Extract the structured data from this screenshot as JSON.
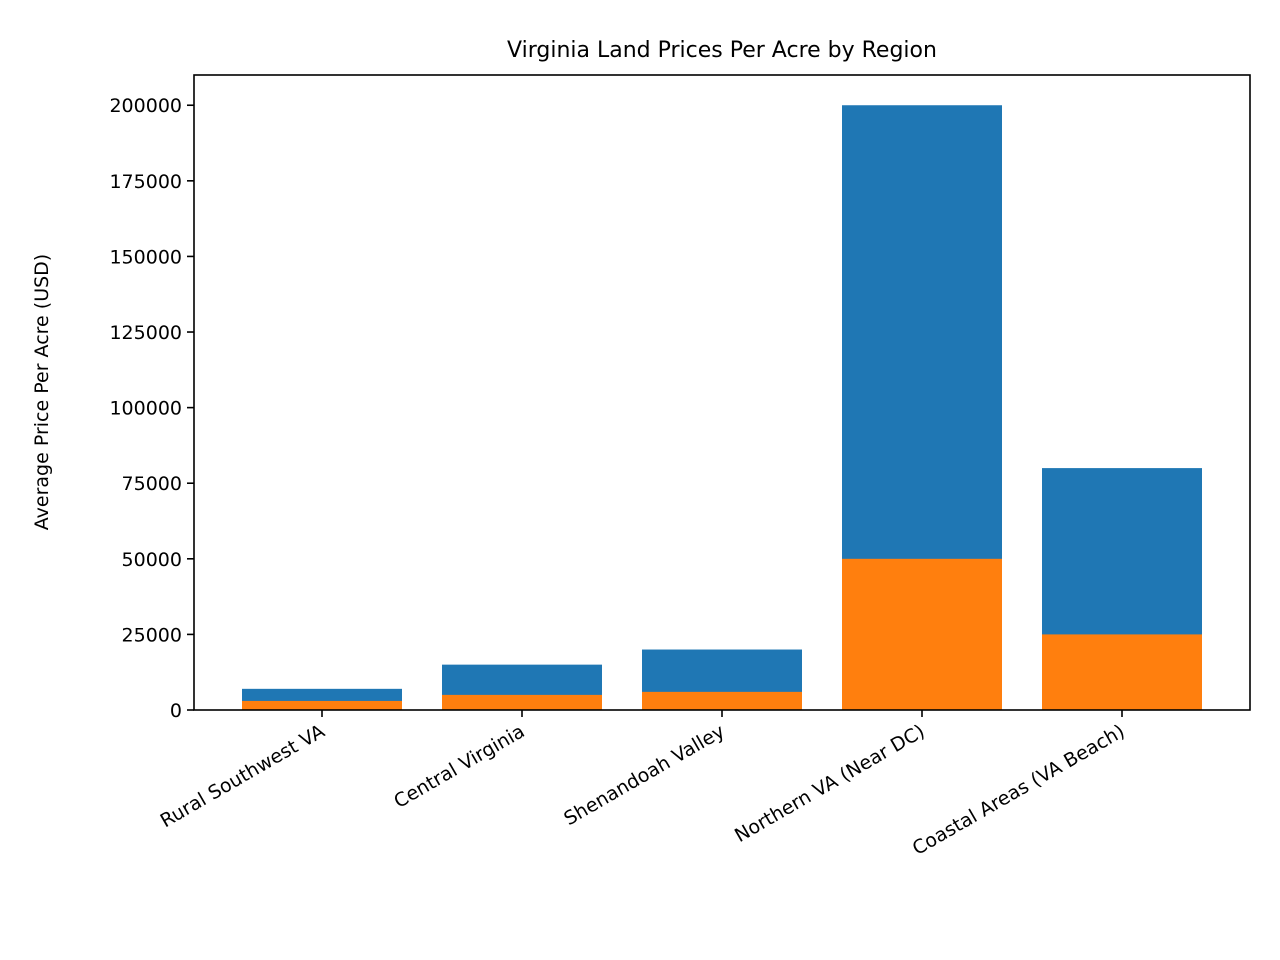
{
  "chart_data": {
    "type": "bar",
    "mode": "overlapping",
    "title": "Virginia Land Prices Per Acre by Region",
    "xlabel": "",
    "ylabel": "Average Price Per Acre (USD)",
    "categories": [
      "Rural Southwest VA",
      "Central Virginia",
      "Shenandoah Valley",
      "Northern VA (Near DC)",
      "Coastal Areas (VA Beach)"
    ],
    "series": [
      {
        "values": [
          7000,
          15000,
          20000,
          200000,
          80000
        ],
        "color": "#1f77b4"
      },
      {
        "values": [
          3000,
          5000,
          6000,
          50000,
          25000
        ],
        "color": "#ff7f0e"
      }
    ],
    "ylim": [
      0,
      210000
    ],
    "yticks": [
      0,
      25000,
      50000,
      75000,
      100000,
      125000,
      150000,
      175000,
      200000
    ],
    "grid": false,
    "legend": "none"
  }
}
